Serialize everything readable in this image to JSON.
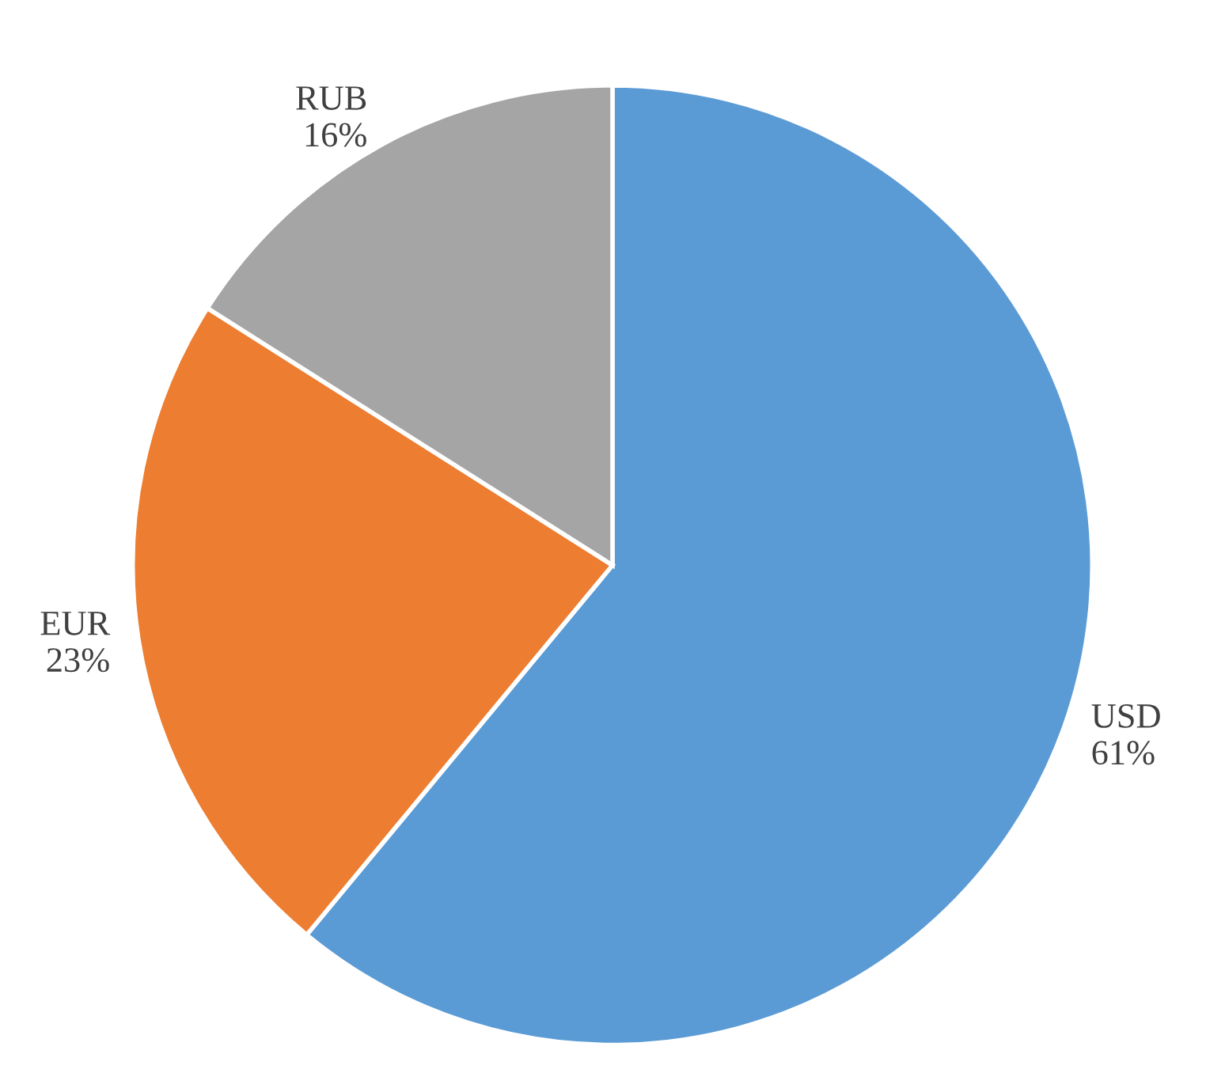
{
  "chart_data": {
    "type": "pie",
    "categories": [
      "USD",
      "EUR",
      "RUB"
    ],
    "values": [
      61,
      23,
      16
    ],
    "colors": [
      "#5b9bd5",
      "#ed7d31",
      "#a5a5a5"
    ],
    "value_labels": [
      "61%",
      "23%",
      "16%"
    ]
  }
}
